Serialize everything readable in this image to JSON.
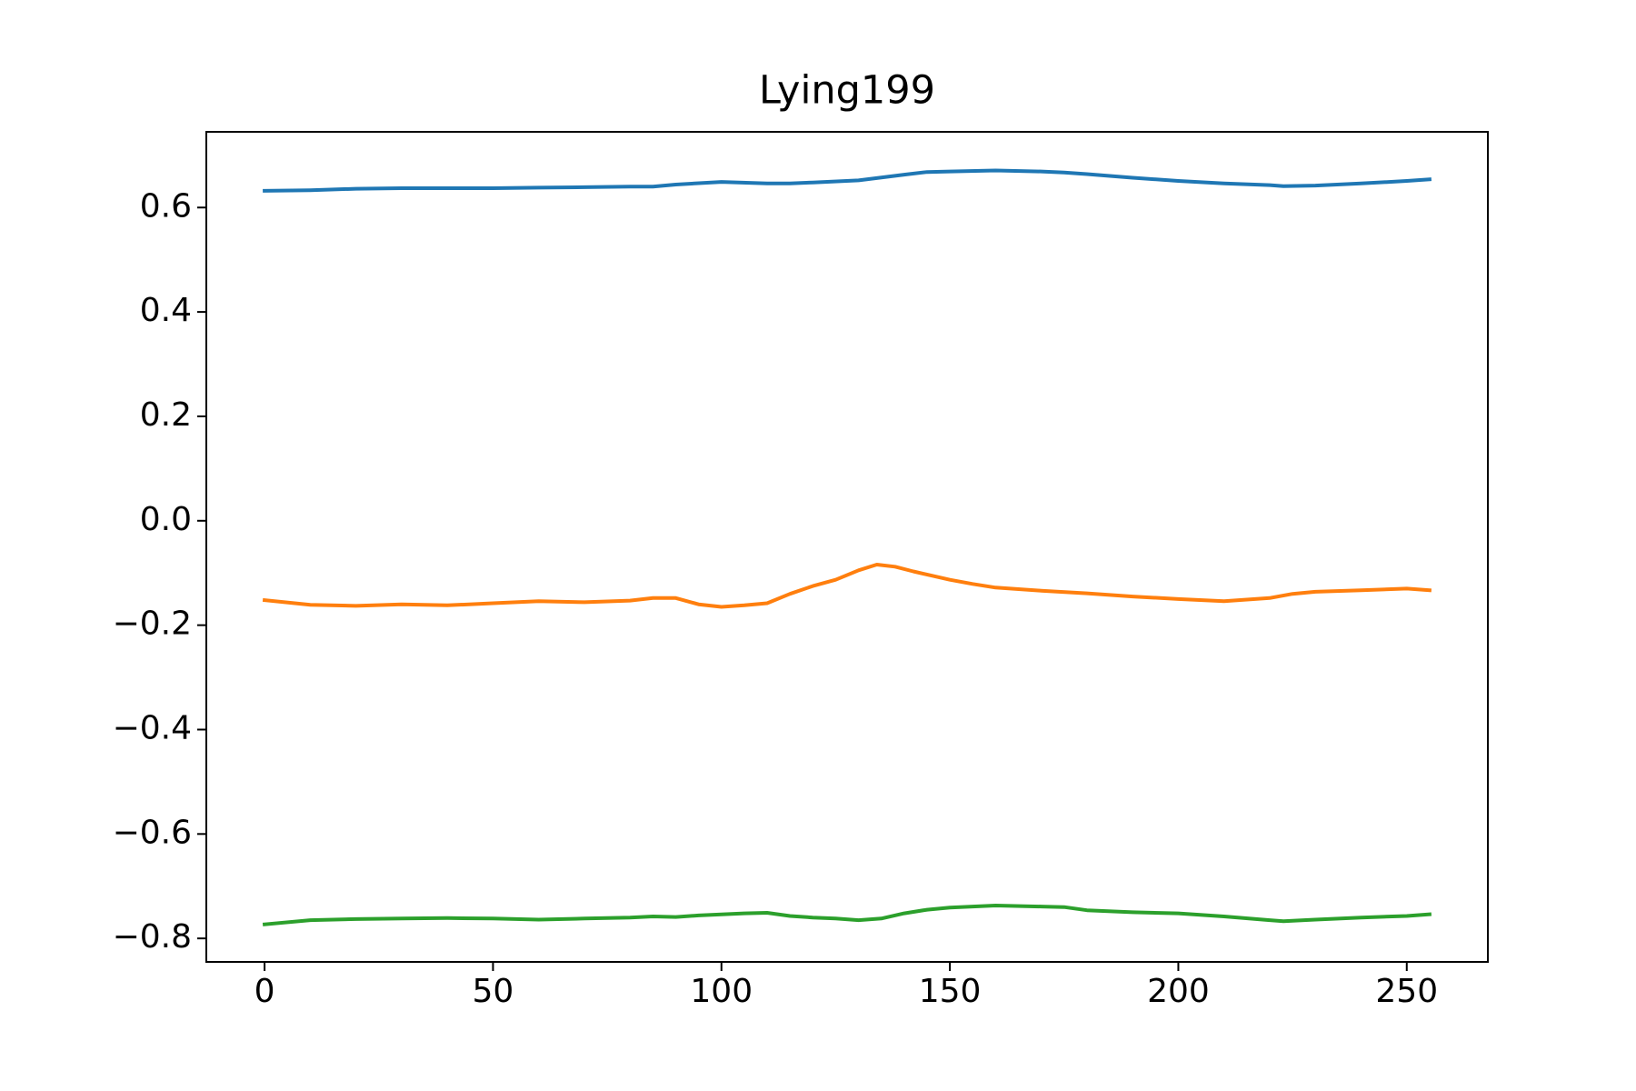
{
  "chart_data": {
    "type": "line",
    "title": "Lying199",
    "xlabel": "",
    "ylabel": "",
    "xlim": [
      -12.75,
      267.75
    ],
    "ylim": [
      -0.845,
      0.745
    ],
    "xticks": [
      0,
      50,
      100,
      150,
      200,
      250
    ],
    "xtick_labels": [
      "0",
      "50",
      "100",
      "150",
      "200",
      "250"
    ],
    "yticks": [
      -0.8,
      -0.6,
      -0.4,
      -0.2,
      0.0,
      0.2,
      0.4,
      0.6
    ],
    "ytick_labels": [
      "−0.8",
      "−0.6",
      "−0.4",
      "−0.2",
      "0.0",
      "0.2",
      "0.4",
      "0.6"
    ],
    "grid": false,
    "legend": "none",
    "series": [
      {
        "color": "#1f77b4",
        "x": [
          0,
          10,
          20,
          30,
          40,
          50,
          60,
          70,
          80,
          85,
          90,
          100,
          110,
          115,
          120,
          130,
          140,
          145,
          150,
          160,
          170,
          175,
          180,
          190,
          200,
          210,
          220,
          223,
          230,
          240,
          250,
          255
        ],
        "y": [
          0.632,
          0.633,
          0.636,
          0.637,
          0.637,
          0.637,
          0.638,
          0.639,
          0.64,
          0.64,
          0.644,
          0.649,
          0.646,
          0.646,
          0.648,
          0.652,
          0.663,
          0.668,
          0.669,
          0.671,
          0.669,
          0.667,
          0.664,
          0.657,
          0.651,
          0.646,
          0.643,
          0.641,
          0.642,
          0.646,
          0.651,
          0.654
        ]
      },
      {
        "color": "#ff7f0e",
        "x": [
          0,
          10,
          20,
          30,
          40,
          50,
          60,
          70,
          80,
          85,
          90,
          95,
          100,
          105,
          110,
          115,
          120,
          125,
          130,
          134,
          138,
          142,
          150,
          155,
          160,
          170,
          180,
          190,
          200,
          210,
          220,
          225,
          230,
          240,
          250,
          255
        ],
        "y": [
          -0.152,
          -0.161,
          -0.163,
          -0.16,
          -0.162,
          -0.158,
          -0.154,
          -0.156,
          -0.153,
          -0.148,
          -0.148,
          -0.16,
          -0.165,
          -0.162,
          -0.158,
          -0.14,
          -0.125,
          -0.113,
          -0.095,
          -0.084,
          -0.088,
          -0.097,
          -0.113,
          -0.121,
          -0.128,
          -0.134,
          -0.139,
          -0.145,
          -0.15,
          -0.154,
          -0.148,
          -0.14,
          -0.136,
          -0.133,
          -0.13,
          -0.133
        ]
      },
      {
        "color": "#2ca02c",
        "x": [
          0,
          10,
          20,
          30,
          40,
          50,
          60,
          70,
          80,
          85,
          90,
          95,
          100,
          105,
          110,
          115,
          120,
          125,
          130,
          135,
          140,
          145,
          150,
          155,
          160,
          170,
          175,
          180,
          190,
          200,
          210,
          220,
          223,
          230,
          240,
          250,
          255
        ],
        "y": [
          -0.773,
          -0.765,
          -0.763,
          -0.762,
          -0.761,
          -0.762,
          -0.764,
          -0.762,
          -0.76,
          -0.758,
          -0.759,
          -0.756,
          -0.754,
          -0.752,
          -0.751,
          -0.757,
          -0.76,
          -0.762,
          -0.765,
          -0.762,
          -0.752,
          -0.745,
          -0.741,
          -0.739,
          -0.737,
          -0.739,
          -0.74,
          -0.746,
          -0.75,
          -0.752,
          -0.758,
          -0.765,
          -0.767,
          -0.764,
          -0.76,
          -0.757,
          -0.754
        ]
      }
    ]
  }
}
